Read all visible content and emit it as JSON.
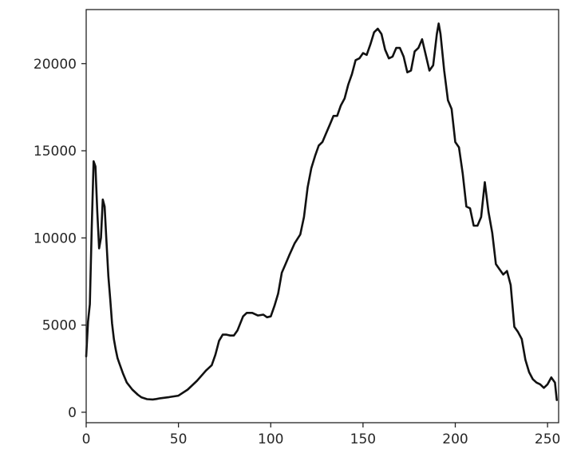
{
  "chart_data": {
    "type": "line",
    "title": "",
    "xlabel": "",
    "ylabel": "",
    "xlim": [
      0,
      256
    ],
    "ylim": [
      -600,
      23100
    ],
    "grid": false,
    "xticks": [
      0,
      50,
      100,
      150,
      200,
      250
    ],
    "yticks": [
      0,
      5000,
      10000,
      15000,
      20000
    ],
    "line_color": "#111111",
    "series": [
      {
        "x": [
          0,
          1,
          2,
          3,
          4,
          5,
          6,
          7,
          8,
          9,
          10,
          11,
          12,
          13,
          14,
          15,
          16,
          17,
          18,
          20,
          22,
          25,
          28,
          30,
          33,
          36,
          38,
          40,
          45,
          50,
          55,
          60,
          65,
          68,
          70,
          72,
          74,
          76,
          78,
          80,
          82,
          85,
          87,
          90,
          93,
          96,
          98,
          100,
          102,
          104,
          106,
          108,
          110,
          113,
          116,
          118,
          120,
          122,
          124,
          126,
          128,
          130,
          132,
          134,
          136,
          138,
          140,
          142,
          144,
          146,
          148,
          150,
          152,
          154,
          156,
          158,
          160,
          162,
          164,
          166,
          168,
          170,
          172,
          174,
          176,
          178,
          180,
          182,
          184,
          186,
          188,
          190,
          191,
          192,
          194,
          196,
          198,
          200,
          202,
          204,
          206,
          208,
          210,
          212,
          214,
          216,
          218,
          220,
          222,
          224,
          226,
          228,
          230,
          232,
          234,
          236,
          238,
          240,
          242,
          244,
          246,
          248,
          250,
          252,
          254,
          255
        ],
        "values": [
          3200,
          5200,
          6200,
          10500,
          14400,
          14100,
          11500,
          9400,
          10000,
          12200,
          11800,
          9800,
          7800,
          6500,
          5100,
          4200,
          3600,
          3100,
          2800,
          2200,
          1700,
          1300,
          1000,
          850,
          750,
          730,
          760,
          800,
          870,
          950,
          1300,
          1800,
          2400,
          2700,
          3300,
          4100,
          4450,
          4450,
          4400,
          4400,
          4700,
          5500,
          5700,
          5700,
          5550,
          5600,
          5450,
          5500,
          6100,
          6800,
          8000,
          8500,
          9000,
          9700,
          10200,
          11200,
          12900,
          14000,
          14700,
          15300,
          15500,
          16000,
          16500,
          17000,
          17000,
          17600,
          18000,
          18800,
          19400,
          20200,
          20300,
          20600,
          20500,
          21100,
          21800,
          22000,
          21700,
          20800,
          20300,
          20400,
          20900,
          20900,
          20400,
          19500,
          19600,
          20700,
          20900,
          21400,
          20500,
          19600,
          19900,
          21700,
          22300,
          21700,
          19600,
          17900,
          17400,
          15500,
          15200,
          13700,
          11800,
          11700,
          10700,
          10700,
          11200,
          13200,
          11500,
          10300,
          8500,
          8200,
          7900,
          8100,
          7300,
          4900,
          4600,
          4200,
          3000,
          2300,
          1900,
          1700,
          1600,
          1400,
          1600,
          2000,
          1700,
          700
        ]
      }
    ]
  }
}
